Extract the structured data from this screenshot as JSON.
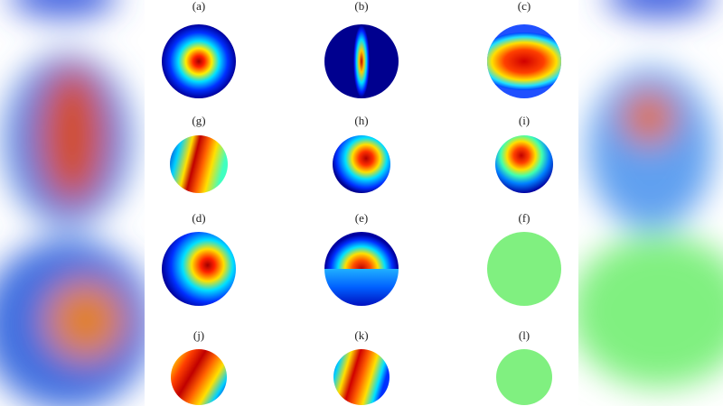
{
  "panels": [
    {
      "label": "(a)"
    },
    {
      "label": "(b)"
    },
    {
      "label": "(c)"
    },
    {
      "label": "(g)"
    },
    {
      "label": "(h)"
    },
    {
      "label": "(i)"
    },
    {
      "label": "(d)"
    },
    {
      "label": "(e)"
    },
    {
      "label": "(f)"
    },
    {
      "label": "(j)"
    },
    {
      "label": "(k)"
    },
    {
      "label": "(l)"
    }
  ]
}
